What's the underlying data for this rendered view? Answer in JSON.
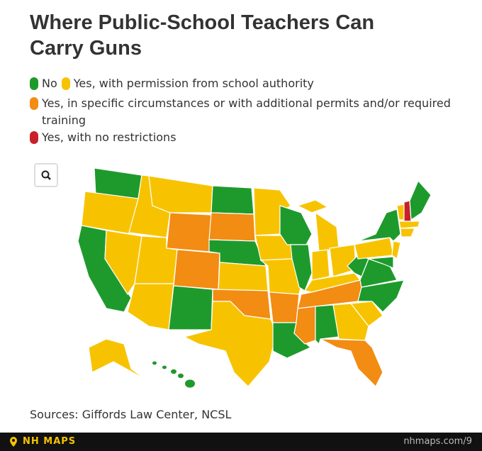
{
  "header": {
    "title": "Where Public-School Teachers Can Carry Guns"
  },
  "legend": {
    "items": [
      {
        "label": "No",
        "color": "#1e9a2c"
      },
      {
        "label": "Yes, with permission from school authority",
        "color": "#f7c300"
      },
      {
        "label": "Yes, in specific circumstances or with additional permits and/or required training",
        "color": "#f28c12"
      },
      {
        "label": "Yes, with no restrictions",
        "color": "#c8202a"
      }
    ]
  },
  "sources": "Sources: Giffords Law Center, NCSL",
  "footer": {
    "brand": "NH MAPS",
    "url": "nhmaps.com/9"
  }
}
